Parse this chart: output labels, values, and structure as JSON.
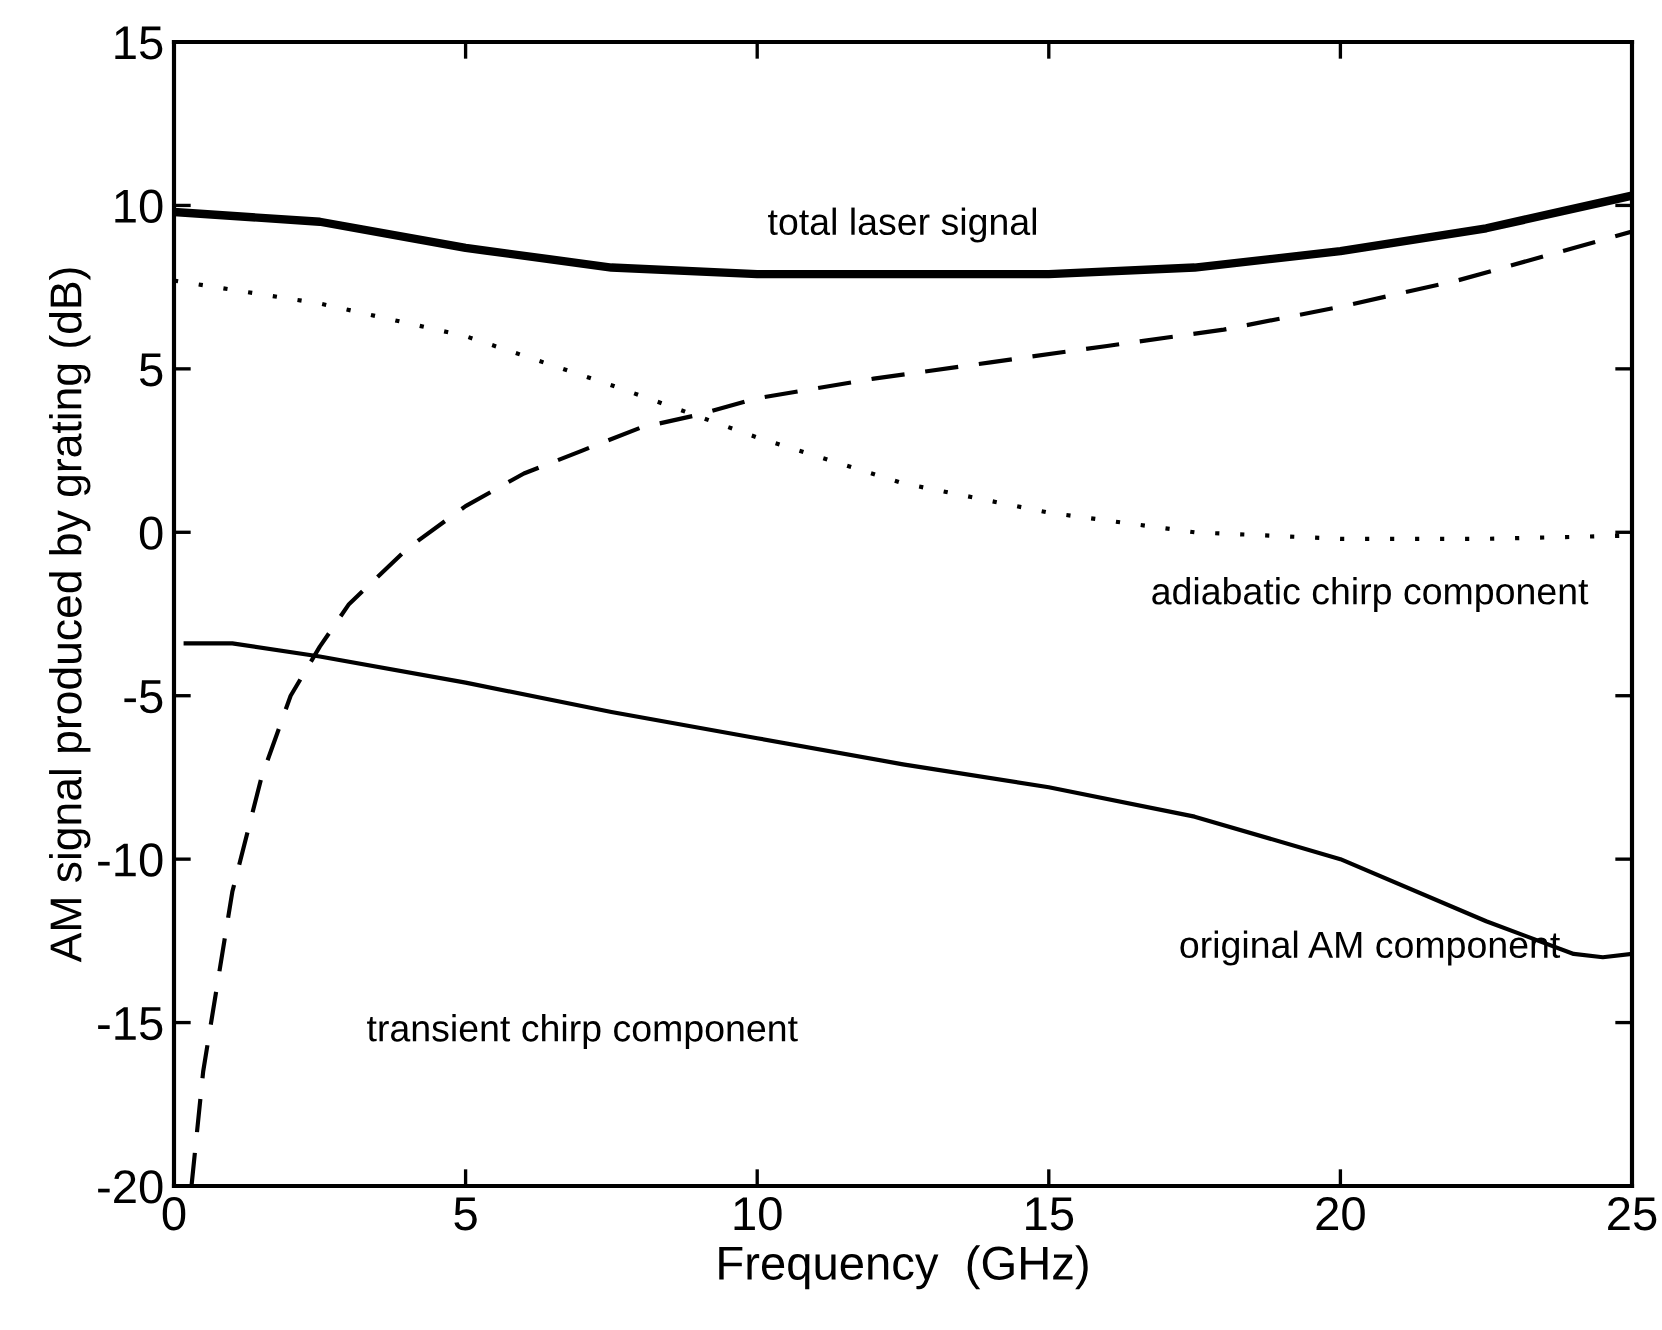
{
  "chart_data": {
    "type": "line",
    "xlabel": "Frequency  (GHz)",
    "ylabel": "AM signal produced by grating (dB)",
    "xlim": [
      0,
      25
    ],
    "ylim": [
      -20,
      15
    ],
    "xticks": [
      0,
      5,
      10,
      15,
      20,
      25
    ],
    "yticks": [
      -20,
      -15,
      -10,
      -5,
      0,
      5,
      10,
      15
    ],
    "grid": false,
    "legend": false,
    "series": [
      {
        "color": "#000000",
        "line_style": "solid",
        "x": [
          0,
          2.5,
          5,
          7.5,
          10,
          12.5,
          15,
          17.5,
          20,
          22.5,
          25
        ],
        "values": [
          9.8,
          9.5,
          8.7,
          8.1,
          7.9,
          7.9,
          7.9,
          8.1,
          8.6,
          9.3,
          10.3
        ]
      },
      {
        "color": "#000000",
        "line_style": "dotted",
        "x": [
          0,
          2.5,
          5,
          7.5,
          10,
          12.5,
          15,
          17.5,
          20,
          22.5,
          25
        ],
        "values": [
          7.7,
          7.0,
          6.0,
          4.5,
          2.9,
          1.5,
          0.6,
          0.0,
          -0.2,
          -0.2,
          -0.1
        ]
      },
      {
        "color": "#000000",
        "line_style": "dashed",
        "x": [
          0.3,
          0.5,
          1,
          1.5,
          2,
          2.5,
          3,
          4,
          5,
          6,
          7,
          8,
          9,
          10,
          12,
          14,
          16,
          18,
          20,
          22,
          24,
          25
        ],
        "values": [
          -20,
          -16.5,
          -11,
          -7.5,
          -5,
          -3.5,
          -2.2,
          -0.5,
          0.8,
          1.8,
          2.5,
          3.2,
          3.6,
          4.1,
          4.7,
          5.2,
          5.7,
          6.2,
          6.9,
          7.7,
          8.7,
          9.2
        ]
      },
      {
        "color": "#000000",
        "line_style": "solid",
        "x": [
          0.2,
          1,
          2.5,
          5,
          7.5,
          10,
          12.5,
          15,
          17.5,
          20,
          22.5,
          24,
          24.5,
          25
        ],
        "values": [
          -3.4,
          -3.4,
          -3.8,
          -4.6,
          -5.5,
          -6.3,
          -7.1,
          -7.8,
          -8.7,
          -10.0,
          -11.9,
          -12.9,
          -13.0,
          -12.9
        ]
      }
    ],
    "annotations": [
      "total laser signal",
      "adiabatic chirp component",
      "original AM component",
      "transient chirp component"
    ]
  }
}
